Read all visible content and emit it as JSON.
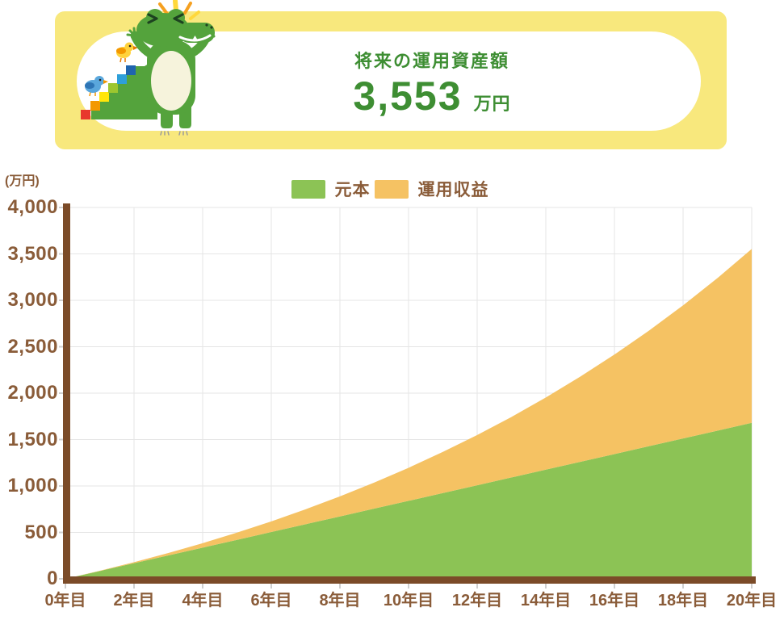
{
  "header": {
    "title": "将来の運用資産額",
    "amount": "3,553",
    "unit": "万円",
    "banner_color": "#F8E87D",
    "text_color": "#3E8E33",
    "mascot": "crocodile-climbing-rainbow-stairs-with-birds"
  },
  "legend": {
    "items": [
      {
        "label": "元本",
        "color": "#8CC355"
      },
      {
        "label": "運用収益",
        "color": "#F5C263"
      }
    ]
  },
  "chart_data": {
    "type": "area",
    "stacked": true,
    "ylabel": "(万円)",
    "grid": true,
    "legend_position": "top-center",
    "xlim": [
      0,
      20
    ],
    "ylim": [
      0,
      4000
    ],
    "x": [
      0,
      1,
      2,
      3,
      4,
      5,
      6,
      7,
      8,
      9,
      10,
      11,
      12,
      13,
      14,
      15,
      16,
      17,
      18,
      19,
      20
    ],
    "x_ticks": [
      {
        "label": "0年目",
        "value": 0
      },
      {
        "label": "2年目",
        "value": 2
      },
      {
        "label": "4年目",
        "value": 4
      },
      {
        "label": "6年目",
        "value": 6
      },
      {
        "label": "8年目",
        "value": 8
      },
      {
        "label": "10年目",
        "value": 10
      },
      {
        "label": "12年目",
        "value": 12
      },
      {
        "label": "14年目",
        "value": 14
      },
      {
        "label": "16年目",
        "value": 16
      },
      {
        "label": "18年目",
        "value": 18
      },
      {
        "label": "20年目",
        "value": 20
      }
    ],
    "y_ticks": [
      {
        "label": "0",
        "value": 0
      },
      {
        "label": "500",
        "value": 500
      },
      {
        "label": "1,000",
        "value": 1000
      },
      {
        "label": "1,500",
        "value": 1500
      },
      {
        "label": "2,000",
        "value": 2000
      },
      {
        "label": "2,500",
        "value": 2500
      },
      {
        "label": "3,000",
        "value": 3000
      },
      {
        "label": "3,500",
        "value": 3500
      },
      {
        "label": "4,000",
        "value": 4000
      }
    ],
    "series": [
      {
        "name": "元本",
        "color": "#8CC355",
        "values": [
          0,
          84,
          168,
          252,
          336,
          420,
          504,
          588,
          672,
          756,
          840,
          924,
          1008,
          1092,
          1176,
          1260,
          1344,
          1428,
          1512,
          1596,
          1680
        ]
      },
      {
        "name": "運用収益",
        "color": "#F5C263",
        "values": [
          0,
          3,
          11,
          26,
          48,
          78,
          115,
          161,
          216,
          281,
          356,
          443,
          541,
          652,
          777,
          917,
          1072,
          1244,
          1434,
          1643,
          1873
        ]
      }
    ],
    "totals": [
      0,
      87,
      179,
      278,
      384,
      498,
      619,
      749,
      888,
      1037,
      1196,
      1367,
      1549,
      1744,
      1953,
      2177,
      2416,
      2672,
      2946,
      3239,
      3553
    ],
    "final_total_label": "3,553"
  },
  "axis": {
    "bar_color": "#7B4B28",
    "tick_label_color": "#8A5C39",
    "grid_color": "#E5E5E5",
    "tick_color": "#CFCFCF"
  }
}
